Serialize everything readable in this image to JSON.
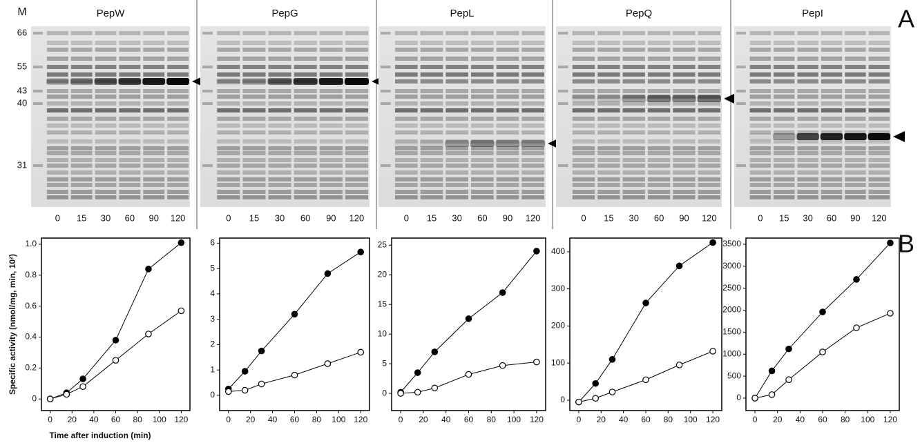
{
  "figure": {
    "panel_labels": [
      "A",
      "B"
    ],
    "ylabel": "Specific activity (nmol/mg, min, 10²)",
    "xlabel": "Time after induction (min)"
  },
  "gels": {
    "marker_label": "M",
    "marker_sizes": [
      "66",
      "55",
      "43",
      "40",
      "31"
    ],
    "panels": [
      {
        "title": "PepW",
        "lanes": [
          "0",
          "15",
          "30",
          "60",
          "90",
          "120"
        ]
      },
      {
        "title": "PepG",
        "lanes": [
          "0",
          "15",
          "30",
          "60",
          "90",
          "120"
        ]
      },
      {
        "title": "PepL",
        "lanes": [
          "0",
          "15",
          "30",
          "60",
          "90",
          "120"
        ]
      },
      {
        "title": "PepQ",
        "lanes": [
          "0",
          "15",
          "30",
          "60",
          "90",
          "120"
        ]
      },
      {
        "title": "PepI",
        "lanes": [
          "0",
          "15",
          "30",
          "60",
          "90",
          "120"
        ]
      }
    ]
  },
  "chart_data": [
    {
      "type": "line",
      "x": [
        0,
        15,
        30,
        60,
        90,
        120
      ],
      "xlim": [
        -8,
        128
      ],
      "xticks": [
        0,
        20,
        40,
        60,
        80,
        100,
        120
      ],
      "ylim": [
        -0.075,
        1.04
      ],
      "yticks": [
        0,
        0.2,
        0.4,
        0.6,
        0.8,
        {
          "value": 1,
          "label": "1.0"
        }
      ],
      "series": [
        {
          "color": "#000000",
          "marker_fill": "#000000",
          "values": [
            0,
            0.04,
            0.13,
            0.38,
            0.84,
            1.01
          ]
        },
        {
          "color": "#000000",
          "marker_fill": "#ffffff",
          "values": [
            0,
            0.03,
            0.08,
            0.25,
            0.42,
            0.57
          ]
        }
      ]
    },
    {
      "type": "line",
      "x": [
        0,
        15,
        30,
        60,
        90,
        120
      ],
      "xlim": [
        -8,
        128
      ],
      "xticks": [
        0,
        20,
        40,
        60,
        80,
        100,
        120
      ],
      "ylim": [
        -0.6,
        6.2
      ],
      "yticks": [
        0,
        1,
        2,
        3,
        4,
        5,
        6
      ],
      "series": [
        {
          "color": "#000000",
          "marker_fill": "#000000",
          "values": [
            0.25,
            0.95,
            1.75,
            3.2,
            4.8,
            5.65
          ]
        },
        {
          "color": "#000000",
          "marker_fill": "#ffffff",
          "values": [
            0.15,
            0.2,
            0.45,
            0.8,
            1.25,
            1.7
          ]
        }
      ]
    },
    {
      "type": "line",
      "x": [
        0,
        15,
        30,
        60,
        90,
        120
      ],
      "xlim": [
        -8,
        128
      ],
      "xticks": [
        0,
        20,
        40,
        60,
        80,
        100,
        120
      ],
      "ylim": [
        -2.9,
        26.2
      ],
      "yticks": [
        0,
        5,
        10,
        15,
        20,
        25
      ],
      "series": [
        {
          "color": "#000000",
          "marker_fill": "#000000",
          "values": [
            0.2,
            3.5,
            7,
            12.6,
            17,
            24
          ]
        },
        {
          "color": "#000000",
          "marker_fill": "#ffffff",
          "values": [
            0,
            0.2,
            0.9,
            3.2,
            4.7,
            5.3
          ]
        }
      ]
    },
    {
      "type": "line",
      "x": [
        0,
        15,
        30,
        60,
        90,
        120
      ],
      "xlim": [
        -8,
        128
      ],
      "xticks": [
        0,
        20,
        40,
        60,
        80,
        100,
        120
      ],
      "ylim": [
        -28,
        437
      ],
      "yticks": [
        0,
        100,
        200,
        300,
        400
      ],
      "series": [
        {
          "color": "#000000",
          "marker_fill": "#000000",
          "values": [
            -5,
            45,
            110,
            262,
            362,
            425
          ]
        },
        {
          "color": "#000000",
          "marker_fill": "#ffffff",
          "values": [
            -5,
            5,
            22,
            55,
            95,
            132
          ]
        }
      ]
    },
    {
      "type": "line",
      "x": [
        0,
        15,
        30,
        60,
        90,
        120
      ],
      "xlim": [
        -8,
        128
      ],
      "xticks": [
        0,
        20,
        40,
        60,
        80,
        100,
        120
      ],
      "ylim": [
        -283,
        3641
      ],
      "yticks": [
        0,
        500,
        1000,
        1500,
        2000,
        2500,
        3000,
        3500
      ],
      "series": [
        {
          "color": "#000000",
          "marker_fill": "#000000",
          "values": [
            0,
            620,
            1120,
            1960,
            2700,
            3530
          ]
        },
        {
          "color": "#000000",
          "marker_fill": "#ffffff",
          "values": [
            0,
            80,
            420,
            1050,
            1600,
            1930
          ]
        }
      ]
    }
  ]
}
